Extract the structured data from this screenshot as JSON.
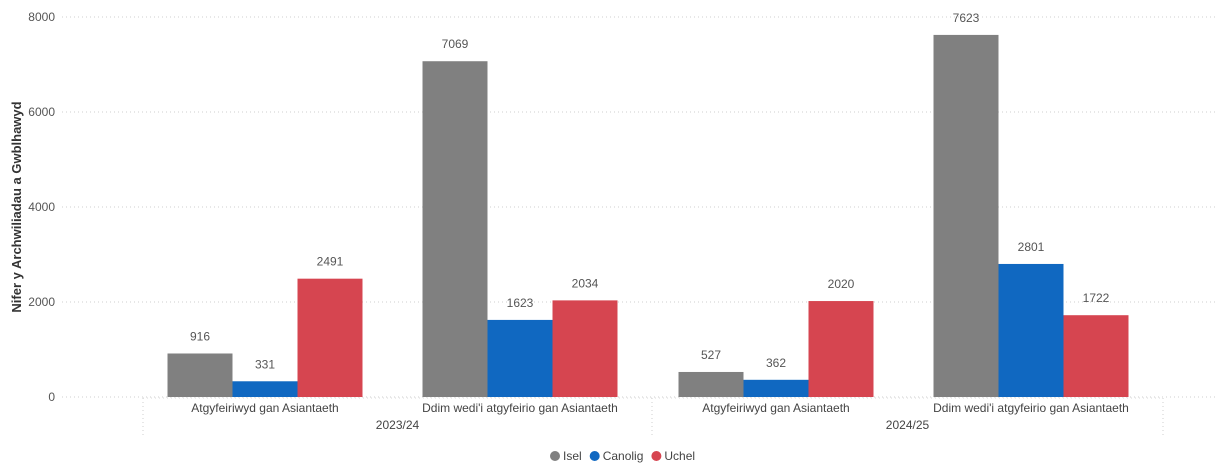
{
  "chart_data": {
    "type": "bar",
    "ylabel": "Nifer y Archwiliadau a Gwblhawyd",
    "ylim": [
      0,
      8000
    ],
    "yticks": [
      0,
      2000,
      4000,
      6000,
      8000
    ],
    "grid": true,
    "legend_position": "bottom-center",
    "groups": [
      {
        "label": "2023/24",
        "categories": [
          {
            "label": "Atgyfeiriwyd gan Asiantaeth",
            "values": [
              916,
              331,
              2491
            ]
          },
          {
            "label": "Ddim wedi'i atgyfeirio gan Asiantaeth",
            "values": [
              7069,
              1623,
              2034
            ]
          }
        ]
      },
      {
        "label": "2024/25",
        "categories": [
          {
            "label": "Atgyfeiriwyd gan Asiantaeth",
            "values": [
              527,
              362,
              2020
            ]
          },
          {
            "label": "Ddim wedi'i atgyfeirio gan Asiantaeth",
            "values": [
              7623,
              2801,
              1722
            ]
          }
        ]
      }
    ],
    "series": [
      {
        "name": "Isel",
        "color": "#808080"
      },
      {
        "name": "Canolig",
        "color": "#1068c1"
      },
      {
        "name": "Uchel",
        "color": "#d64550"
      }
    ]
  }
}
